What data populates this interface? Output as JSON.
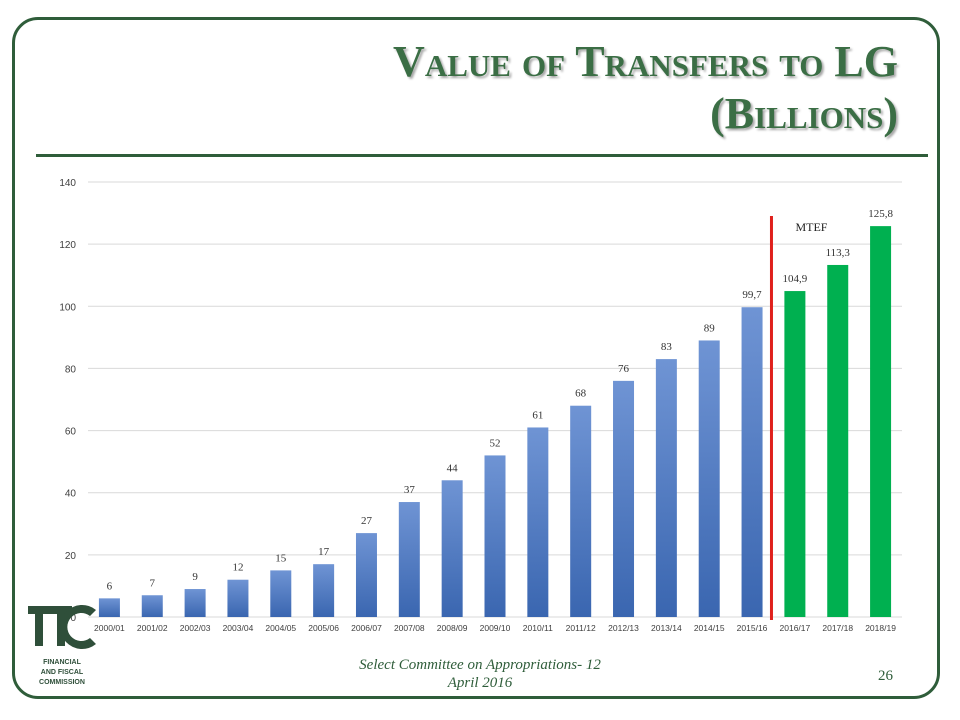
{
  "slide": {
    "title_line1": "Value of Transfers to LG",
    "title_line2": "(Billions)",
    "footer_line1": "Select Committee on Appropriations- 12",
    "footer_line2": "April 2016",
    "page_number": "26"
  },
  "logo": {
    "mark": "FFC",
    "line1": "FINANCIAL",
    "line2": "AND FISCAL",
    "line3": "COMMISSION"
  },
  "chart_data": {
    "type": "bar",
    "categories": [
      "2000/01",
      "2001/02",
      "2002/03",
      "2003/04",
      "2004/05",
      "2005/06",
      "2006/07",
      "2007/08",
      "2008/09",
      "2009/10",
      "2010/11",
      "2011/12",
      "2012/13",
      "2013/14",
      "2014/15",
      "2015/16",
      "2016/17",
      "2017/18",
      "2018/19"
    ],
    "values": [
      6,
      7,
      9,
      12,
      15,
      17,
      27,
      37,
      44,
      52,
      61,
      68,
      76,
      83,
      89,
      99.7,
      104.9,
      113.3,
      125.8
    ],
    "data_labels": [
      "6",
      "7",
      "9",
      "12",
      "15",
      "17",
      "27",
      "37",
      "44",
      "52",
      "61",
      "68",
      "76",
      "83",
      "89",
      "99,7",
      "104,9",
      "113,3",
      "125,8"
    ],
    "ylim": [
      0,
      140
    ],
    "yticks": [
      0,
      20,
      40,
      60,
      80,
      100,
      120,
      140
    ],
    "grid": true,
    "annotation": "MTEF",
    "colors": {
      "historical": "#4472c4",
      "mtef": "#00b050",
      "divider": "#e0201c"
    },
    "mtef_start_index": 16
  }
}
